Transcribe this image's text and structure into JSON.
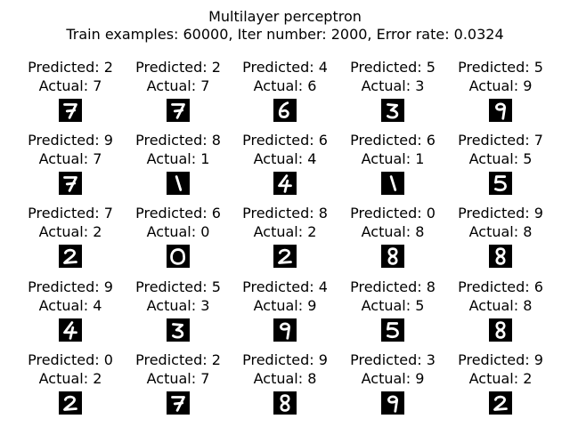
{
  "figure": {
    "title_line1": "Multilayer perceptron",
    "title_line2": "Train examples: 60000, Iter number: 2000, Error rate: 0.0324",
    "predicted_prefix": "Predicted: ",
    "actual_prefix": "Actual: ",
    "image_background": "#000000",
    "digit_color": "#ffffff",
    "samples": [
      {
        "predicted": "2",
        "actual": "7",
        "glyph": "7"
      },
      {
        "predicted": "2",
        "actual": "7",
        "glyph": "7"
      },
      {
        "predicted": "4",
        "actual": "6",
        "glyph": "6"
      },
      {
        "predicted": "5",
        "actual": "3",
        "glyph": "3"
      },
      {
        "predicted": "5",
        "actual": "9",
        "glyph": "9"
      },
      {
        "predicted": "9",
        "actual": "7",
        "glyph": "7"
      },
      {
        "predicted": "8",
        "actual": "1",
        "glyph": "1"
      },
      {
        "predicted": "6",
        "actual": "4",
        "glyph": "4"
      },
      {
        "predicted": "6",
        "actual": "1",
        "glyph": "1"
      },
      {
        "predicted": "7",
        "actual": "5",
        "glyph": "5"
      },
      {
        "predicted": "7",
        "actual": "2",
        "glyph": "2"
      },
      {
        "predicted": "6",
        "actual": "0",
        "glyph": "0"
      },
      {
        "predicted": "8",
        "actual": "2",
        "glyph": "2"
      },
      {
        "predicted": "0",
        "actual": "8",
        "glyph": "8"
      },
      {
        "predicted": "9",
        "actual": "8",
        "glyph": "8"
      },
      {
        "predicted": "9",
        "actual": "4",
        "glyph": "4"
      },
      {
        "predicted": "5",
        "actual": "3",
        "glyph": "3"
      },
      {
        "predicted": "4",
        "actual": "9",
        "glyph": "9"
      },
      {
        "predicted": "8",
        "actual": "5",
        "glyph": "5"
      },
      {
        "predicted": "6",
        "actual": "8",
        "glyph": "8"
      },
      {
        "predicted": "0",
        "actual": "2",
        "glyph": "2"
      },
      {
        "predicted": "2",
        "actual": "7",
        "glyph": "7"
      },
      {
        "predicted": "9",
        "actual": "8",
        "glyph": "8"
      },
      {
        "predicted": "3",
        "actual": "9",
        "glyph": "9"
      },
      {
        "predicted": "9",
        "actual": "2",
        "glyph": "2"
      }
    ]
  }
}
